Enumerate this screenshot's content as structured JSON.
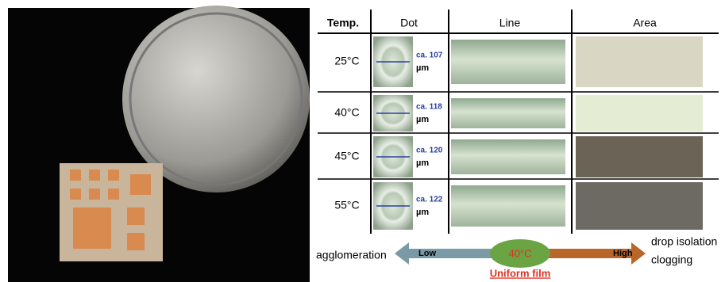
{
  "table": {
    "header": [
      "Temp.",
      "Dot",
      "Line",
      "Area"
    ],
    "rows": [
      {
        "temp": "25°C",
        "dot_size": "ca. 107",
        "dot_unit": "µm"
      },
      {
        "temp": "40°C",
        "dot_size": "ca. 118",
        "dot_unit": "µm"
      },
      {
        "temp": "45°C",
        "dot_size": "ca. 120",
        "dot_unit": "µm"
      },
      {
        "temp": "55°C",
        "dot_size": "ca. 122",
        "dot_unit": "µm"
      }
    ]
  },
  "scale": {
    "left_label": "agglomeration",
    "low": "Low",
    "center": "40°C",
    "high": "High",
    "right_label_1": "drop isolation",
    "right_label_2": "clogging",
    "caption": "Uniform film"
  }
}
